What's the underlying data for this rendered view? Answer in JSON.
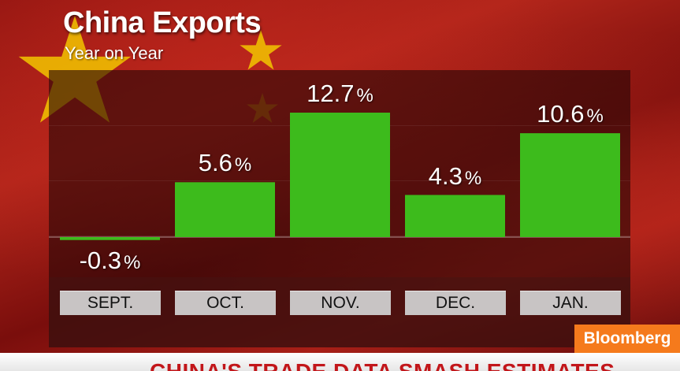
{
  "header": {
    "title": "China Exports",
    "subtitle": "Year on Year"
  },
  "brand": "Bloomberg",
  "ticker": "CHINA'S TRADE DATA SMASH ESTIMATES",
  "colors": {
    "bar": "#3dbb1c",
    "flag_red": "#b3261b",
    "star": "#f2c500",
    "brand": "#f57a1c"
  },
  "chart_data": {
    "type": "bar",
    "title": "China Exports",
    "subtitle": "Year on Year",
    "categories": [
      "SEPT.",
      "OCT.",
      "NOV.",
      "DEC.",
      "JAN."
    ],
    "values": [
      -0.3,
      5.6,
      12.7,
      4.3,
      10.6
    ],
    "value_labels": [
      "-0.3",
      "5.6",
      "12.7",
      "4.3",
      "10.6"
    ],
    "unit": "%",
    "xlabel": "",
    "ylabel": "",
    "ylim": [
      -0.3,
      12.7
    ],
    "grid": false,
    "legend": "none"
  }
}
